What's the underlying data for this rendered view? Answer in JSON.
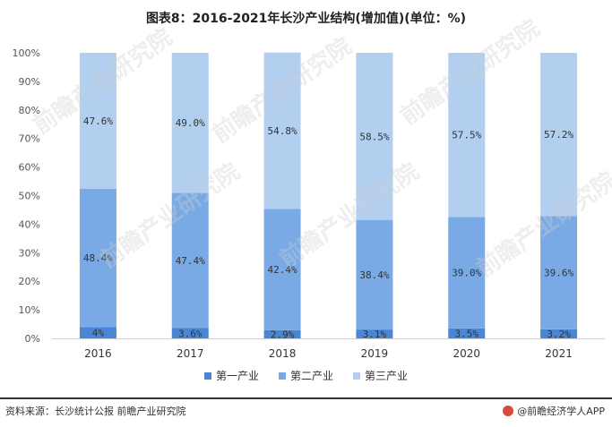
{
  "title": "图表8：2016-2021年长沙产业结构(增加值)(单位：%)",
  "source": "资料来源：长沙统计公报 前瞻产业研究院",
  "brand": "@前瞻经济学人APP",
  "watermark": "前瞻产业研究院",
  "chart_data": {
    "type": "bar",
    "stacked": true,
    "categories": [
      "2016",
      "2017",
      "2018",
      "2019",
      "2020",
      "2021"
    ],
    "y_ticks": [
      "0%",
      "10%",
      "20%",
      "30%",
      "40%",
      "50%",
      "60%",
      "70%",
      "80%",
      "90%",
      "100%"
    ],
    "ylim": [
      0,
      100
    ],
    "legend_position": "bottom",
    "series": [
      {
        "name": "第一产业",
        "color": "#4a86d4",
        "values": [
          4,
          3.6,
          2.9,
          3.1,
          3.5,
          3.2
        ],
        "labels": [
          "4%",
          "3.6%",
          "2.9%",
          "3.1%",
          "3.5%",
          "3.2%"
        ]
      },
      {
        "name": "第二产业",
        "color": "#7aaae6",
        "values": [
          48.4,
          47.4,
          42.4,
          38.4,
          39.0,
          39.6
        ],
        "labels": [
          "48.4%",
          "47.4%",
          "42.4%",
          "38.4%",
          "39.0%",
          "39.6%"
        ]
      },
      {
        "name": "第三产业",
        "color": "#b3cff0",
        "values": [
          47.6,
          49.0,
          54.8,
          58.5,
          57.5,
          57.2
        ],
        "labels": [
          "47.6%",
          "49.0%",
          "54.8%",
          "58.5%",
          "57.5%",
          "57.2%"
        ]
      }
    ]
  }
}
